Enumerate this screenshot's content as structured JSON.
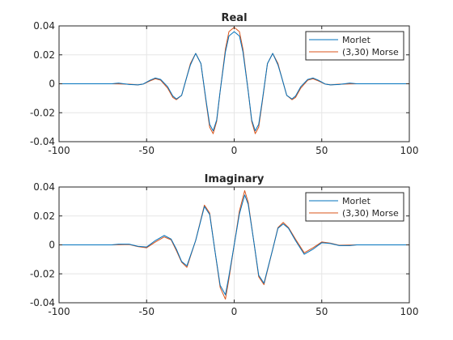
{
  "chart_data": [
    {
      "type": "line",
      "title": "Real",
      "xlabel": "",
      "ylabel": "",
      "xlim": [
        -100,
        100
      ],
      "ylim": [
        -0.04,
        0.04
      ],
      "xticks": [
        -100,
        -50,
        0,
        50,
        100
      ],
      "xtick_labels": [
        "-100",
        "-50",
        "0",
        "50",
        "100"
      ],
      "yticks": [
        0.04,
        0.02,
        0,
        -0.02,
        -0.04
      ],
      "ytick_labels": [
        "0.04",
        "0.02",
        "0",
        "-0.02",
        "-0.04"
      ],
      "grid": true,
      "legend_position": "top-right",
      "series": [
        {
          "name": "Morlet",
          "color": "#0072BD",
          "x": [
            -100,
            -80,
            -70,
            -66,
            -60,
            -55,
            -52,
            -48,
            -45,
            -42,
            -38,
            -35,
            -33,
            -30,
            -27,
            -25,
            -22,
            -19,
            -16,
            -14,
            -12,
            -10,
            -8,
            -5,
            -3,
            0,
            3,
            5,
            8,
            10,
            12,
            14,
            16,
            19,
            22,
            25,
            27,
            30,
            33,
            35,
            38,
            42,
            45,
            48,
            52,
            55,
            60,
            66,
            70,
            80,
            100
          ],
          "y": [
            0,
            0,
            0,
            0.0005,
            -0.0005,
            -0.0008,
            -0.0002,
            0.0025,
            0.004,
            0.003,
            -0.002,
            -0.0085,
            -0.0105,
            -0.008,
            0.005,
            0.013,
            0.021,
            0.014,
            -0.012,
            -0.028,
            -0.0325,
            -0.025,
            -0.005,
            0.022,
            0.033,
            0.036,
            0.033,
            0.022,
            -0.005,
            -0.025,
            -0.0325,
            -0.028,
            -0.012,
            0.014,
            0.021,
            0.013,
            0.005,
            -0.008,
            -0.0105,
            -0.0085,
            -0.002,
            0.003,
            0.004,
            0.0025,
            -0.0002,
            -0.0008,
            -0.0005,
            0.0005,
            0,
            0,
            0
          ]
        },
        {
          "name": "(3,30) Morse",
          "color": "#D95319",
          "x": [
            -100,
            -80,
            -70,
            -60,
            -55,
            -52,
            -48,
            -45,
            -42,
            -38,
            -35,
            -33,
            -30,
            -27,
            -25,
            -22,
            -19,
            -16,
            -14,
            -12,
            -10,
            -8,
            -5,
            -3,
            0,
            3,
            5,
            8,
            10,
            12,
            14,
            16,
            19,
            22,
            25,
            27,
            30,
            33,
            35,
            38,
            42,
            45,
            48,
            52,
            55,
            60,
            70,
            80,
            100
          ],
          "y": [
            0,
            0,
            0,
            -0.0003,
            -0.0008,
            -0.0002,
            0.002,
            0.0035,
            0.0025,
            -0.003,
            -0.0095,
            -0.011,
            -0.008,
            0.005,
            0.014,
            0.021,
            0.014,
            -0.013,
            -0.03,
            -0.0345,
            -0.026,
            -0.005,
            0.024,
            0.036,
            0.039,
            0.036,
            0.024,
            -0.005,
            -0.026,
            -0.0345,
            -0.03,
            -0.013,
            0.014,
            0.021,
            0.014,
            0.005,
            -0.008,
            -0.011,
            -0.0095,
            -0.003,
            0.0025,
            0.0035,
            0.002,
            -0.0002,
            -0.0008,
            -0.0003,
            0,
            0,
            0
          ]
        }
      ]
    },
    {
      "type": "line",
      "title": "Imaginary",
      "xlabel": "",
      "ylabel": "",
      "xlim": [
        -100,
        100
      ],
      "ylim": [
        -0.04,
        0.04
      ],
      "xticks": [
        -100,
        -50,
        0,
        50,
        100
      ],
      "xtick_labels": [
        "-100",
        "-50",
        "0",
        "50",
        "100"
      ],
      "yticks": [
        0.04,
        0.02,
        0,
        -0.02,
        -0.04
      ],
      "ytick_labels": [
        "0.04",
        "0.02",
        "0",
        "-0.02",
        "-0.04"
      ],
      "grid": true,
      "legend_position": "top-right",
      "series": [
        {
          "name": "Morlet",
          "color": "#0072BD",
          "x": [
            -100,
            -70,
            -66,
            -60,
            -55,
            -50,
            -45,
            -40,
            -36,
            -33,
            -30,
            -27,
            -22,
            -17,
            -14,
            -11,
            -8,
            -5,
            -3,
            0,
            3,
            6,
            8,
            11,
            14,
            17,
            22,
            25,
            28,
            31,
            35,
            40,
            45,
            50,
            55,
            60,
            66,
            70,
            100
          ],
          "y": [
            0,
            0,
            0.0005,
            0.0005,
            -0.001,
            -0.0015,
            0.003,
            0.0065,
            0.004,
            -0.003,
            -0.0115,
            -0.0145,
            0.003,
            0.0265,
            0.021,
            -0.004,
            -0.028,
            -0.0345,
            -0.0215,
            0,
            0.0215,
            0.0345,
            0.028,
            0.004,
            -0.021,
            -0.0265,
            -0.003,
            0.0115,
            0.0145,
            0.0115,
            0.003,
            -0.0065,
            -0.003,
            0.0015,
            0.001,
            -0.0005,
            -0.0005,
            0,
            0
          ]
        },
        {
          "name": "(3,30) Morse",
          "color": "#D95319",
          "x": [
            -100,
            -70,
            -60,
            -55,
            -50,
            -45,
            -40,
            -36,
            -33,
            -30,
            -27,
            -22,
            -17,
            -14,
            -11,
            -8,
            -5,
            -3,
            0,
            3,
            6,
            8,
            11,
            14,
            17,
            22,
            25,
            28,
            31,
            35,
            40,
            45,
            50,
            55,
            60,
            70,
            100
          ],
          "y": [
            0,
            0,
            0.0003,
            -0.0012,
            -0.002,
            0.002,
            0.0055,
            0.0035,
            -0.004,
            -0.012,
            -0.0155,
            0.003,
            0.0275,
            0.022,
            -0.004,
            -0.0295,
            -0.0375,
            -0.0235,
            0,
            0.0235,
            0.0375,
            0.0295,
            0.004,
            -0.022,
            -0.0275,
            -0.003,
            0.012,
            0.0155,
            0.012,
            0.004,
            -0.0055,
            -0.002,
            0.002,
            0.0012,
            -0.0003,
            0,
            0
          ]
        }
      ]
    }
  ]
}
